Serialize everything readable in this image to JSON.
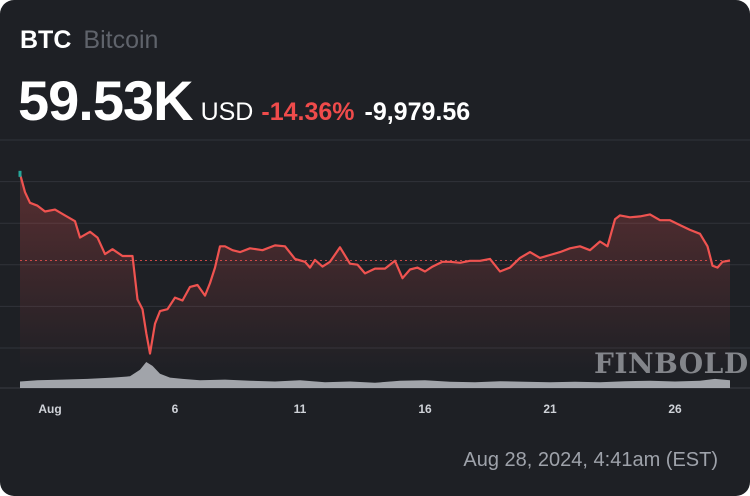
{
  "header": {
    "ticker": "BTC",
    "name": "Bitcoin",
    "price": "59.53K",
    "currency": "USD",
    "change_pct": "-14.36%",
    "change_abs": "-9,979.56"
  },
  "timestamp": "Aug 28, 2024, 4:41am (EST)",
  "watermark": "FINBOLD",
  "colors": {
    "background": "#1e2025",
    "line": "#ef5350",
    "negative": "#ef4b4b",
    "start_marker": "#26a69a",
    "volume": "#b9bcc2"
  },
  "chart_data": {
    "type": "line",
    "title": "",
    "xlabel": "",
    "ylabel": "",
    "x_ticks": [
      "Aug",
      "6",
      "11",
      "16",
      "21",
      "26"
    ],
    "x_tick_days": [
      1,
      6,
      11,
      16,
      21,
      26
    ],
    "x_range_days": [
      -0.2,
      28.2
    ],
    "ylim": [
      48000,
      72000
    ],
    "grid": true,
    "reference_line": {
      "value": 59530,
      "style": "dotted"
    },
    "start_point_color": "#26a69a",
    "series": [
      {
        "x": [
          -0.2,
          0.0,
          0.2,
          0.5,
          0.8,
          1.2,
          1.6,
          2.0,
          2.2,
          2.6,
          2.9,
          3.2,
          3.5,
          3.9,
          4.3,
          4.5,
          4.7,
          4.85,
          5.0,
          5.2,
          5.4,
          5.7,
          6.0,
          6.3,
          6.6,
          6.9,
          7.2,
          7.4,
          7.6,
          7.8,
          8.0,
          8.3,
          8.6,
          9.0,
          9.5,
          10.0,
          10.4,
          10.8,
          11.2,
          11.4,
          11.6,
          11.9,
          12.2,
          12.6,
          13.0,
          13.3,
          13.6,
          14.0,
          14.4,
          14.8,
          15.1,
          15.4,
          15.7,
          16.0,
          16.3,
          16.7,
          17.0,
          17.4,
          17.8,
          18.2,
          18.6,
          19.0,
          19.4,
          19.8,
          20.2,
          20.6,
          21.0,
          21.4,
          21.8,
          22.2,
          22.6,
          23.0,
          23.3,
          23.6,
          23.8,
          24.2,
          24.6,
          25.0,
          25.4,
          25.8,
          26.2,
          26.6,
          27.0,
          27.3,
          27.5,
          27.7,
          27.9,
          28.2
        ],
        "y": [
          68500,
          66600,
          65500,
          65200,
          64600,
          64800,
          64200,
          63600,
          61900,
          62500,
          61900,
          60200,
          60700,
          60000,
          60000,
          55500,
          54500,
          52000,
          49900,
          53000,
          54300,
          54500,
          55700,
          55400,
          56800,
          57000,
          55900,
          57200,
          58800,
          61000,
          61000,
          60600,
          60400,
          60800,
          60600,
          61100,
          61000,
          59700,
          59400,
          58800,
          59600,
          58900,
          59400,
          60900,
          59200,
          59100,
          58200,
          58700,
          58700,
          59500,
          57700,
          58600,
          58800,
          58400,
          58900,
          59400,
          59400,
          59300,
          59500,
          59500,
          59700,
          58400,
          58800,
          59800,
          60400,
          59800,
          60100,
          60400,
          60800,
          61000,
          60600,
          61500,
          61000,
          63800,
          64200,
          64000,
          64100,
          64300,
          63700,
          63700,
          63200,
          62700,
          62300,
          61000,
          59000,
          58800,
          59400,
          59530
        ]
      }
    ],
    "volume": {
      "x": [
        -0.2,
        0.5,
        1.5,
        2.5,
        3.5,
        4.2,
        4.6,
        4.85,
        5.1,
        5.4,
        5.8,
        6.3,
        7.0,
        8.0,
        9.0,
        10.0,
        11.0,
        12.0,
        13.0,
        14.0,
        15.0,
        16.0,
        17.0,
        18.0,
        19.0,
        20.0,
        21.0,
        22.0,
        23.0,
        24.0,
        25.0,
        26.0,
        27.0,
        27.6,
        28.2
      ],
      "v": [
        0.25,
        0.3,
        0.32,
        0.35,
        0.4,
        0.45,
        0.7,
        1.0,
        0.85,
        0.55,
        0.4,
        0.35,
        0.3,
        0.32,
        0.28,
        0.25,
        0.3,
        0.22,
        0.25,
        0.2,
        0.28,
        0.3,
        0.24,
        0.22,
        0.26,
        0.24,
        0.22,
        0.24,
        0.22,
        0.26,
        0.28,
        0.25,
        0.28,
        0.35,
        0.3
      ]
    }
  }
}
